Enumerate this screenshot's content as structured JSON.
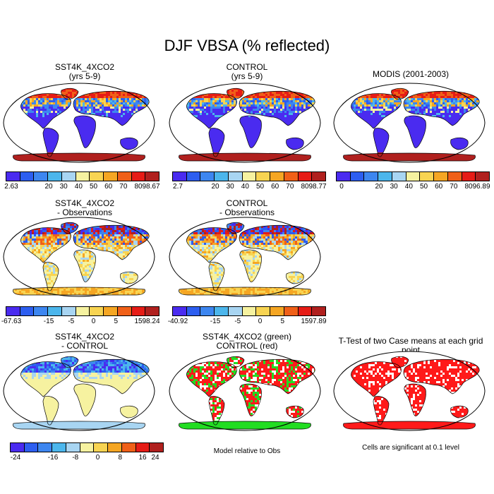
{
  "title": "DJF VBSA (% reflected)",
  "colors": {
    "ocean": "#ffffff",
    "coast": "#000000",
    "palette": [
      "#4a2bf0",
      "#2d5ef0",
      "#3d86f0",
      "#4cb6ec",
      "#a8d5f2",
      "#f6f2a0",
      "#f8d452",
      "#f5a623",
      "#f06018",
      "#e61c16",
      "#b0201e"
    ],
    "green": "#22dd22",
    "red": "#ff1a1a"
  },
  "panels": [
    {
      "title_lines": [
        "SST4K_4XCO2",
        "(yrs 5-9)"
      ],
      "ticks": [
        "2.63",
        "20",
        "30",
        "40",
        "50",
        "60",
        "70",
        "80",
        "98.67"
      ]
    },
    {
      "title_lines": [
        "CONTROL",
        "(yrs 5-9)"
      ],
      "ticks": [
        "2.7",
        "20",
        "30",
        "40",
        "50",
        "60",
        "70",
        "80",
        "98.77"
      ]
    },
    {
      "title_lines": [
        "MODIS (2001-2003)",
        ""
      ],
      "ticks": [
        "0",
        "20",
        "30",
        "40",
        "50",
        "60",
        "70",
        "80",
        "96.89"
      ]
    },
    {
      "title_lines": [
        "SST4K_4XCO2",
        "- Observations"
      ],
      "ticks": [
        "-67.63",
        "-15",
        "-5",
        "0",
        "5",
        "15",
        "98.24"
      ]
    },
    {
      "title_lines": [
        "CONTROL",
        "- Observations"
      ],
      "ticks": [
        "-40.92",
        "-15",
        "-5",
        "0",
        "5",
        "15",
        "97.89"
      ]
    },
    {
      "title_lines": [
        "SST4K_4XCO2",
        "- CONTROL"
      ],
      "ticks": [
        "-24",
        "-16",
        "-8",
        "0",
        "8",
        "16",
        "24"
      ]
    },
    {
      "title_lines": [
        "SST4K_4XCO2 (green)",
        "CONTROL (red)"
      ],
      "note": "Model relative to Obs"
    },
    {
      "title_lines": [
        "T-Test of two Case means at each grid point",
        ""
      ],
      "note": "Cells are significant at 0.1 level"
    }
  ]
}
